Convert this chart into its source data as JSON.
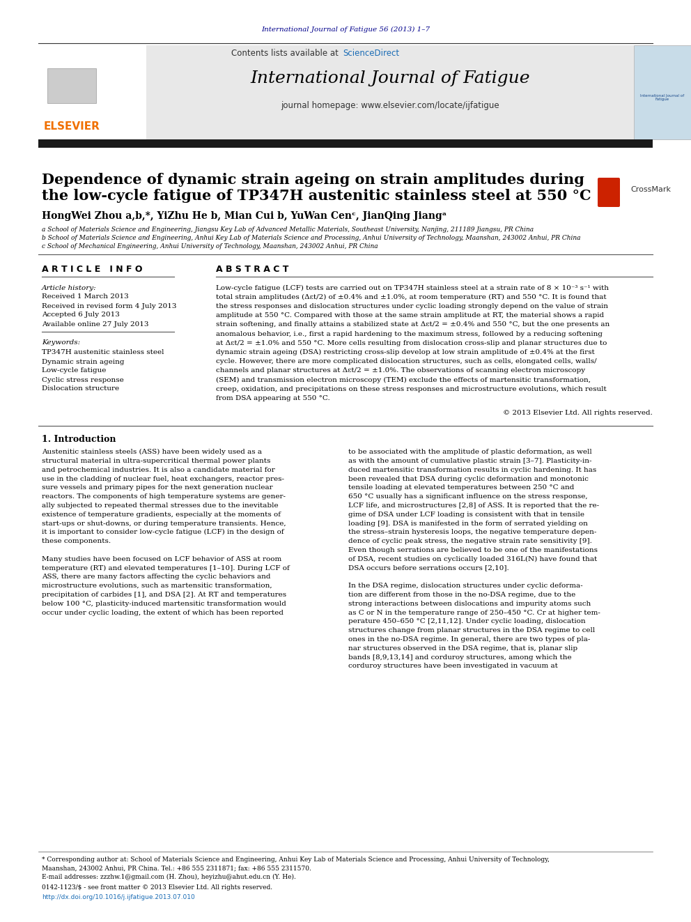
{
  "page_width": 9.92,
  "page_height": 13.23,
  "bg_color": "#ffffff",
  "top_citation": "International Journal of Fatigue 56 (2013) 1–7",
  "journal_name": "International Journal of Fatigue",
  "journal_homepage": "journal homepage: www.elsevier.com/locate/ijfatigue",
  "contents_available": "Contents lists available at ",
  "science_direct": "ScienceDirect",
  "article_title_line1": "Dependence of dynamic strain ageing on strain amplitudes during",
  "article_title_line2": "the low-cycle fatigue of TP347H austenitic stainless steel at 550 °C",
  "authors": "HongWei Zhou a,b,*, YiZhu He b, Mian Cui b, YuWan Cenᶜ, JianQing Jiangᵃ",
  "affil_a": "a School of Materials Science and Engineering, Jiangsu Key Lab of Advanced Metallic Materials, Southeast University, Nanjing, 211189 Jiangsu, PR China",
  "affil_b": "b School of Materials Science and Engineering, Anhui Key Lab of Materials Science and Processing, Anhui University of Technology, Maanshan, 243002 Anhui, PR China",
  "affil_c": "c School of Mechanical Engineering, Anhui University of Technology, Maanshan, 243002 Anhui, PR China",
  "article_info_title": "A R T I C L E   I N F O",
  "abstract_title": "A B S T R A C T",
  "article_history_label": "Article history:",
  "received": "Received 1 March 2013",
  "received_revised": "Received in revised form 4 July 2013",
  "accepted": "Accepted 6 July 2013",
  "available_online": "Available online 27 July 2013",
  "keywords_label": "Keywords:",
  "keyword1": "TP347H austenitic stainless steel",
  "keyword2": "Dynamic strain ageing",
  "keyword3": "Low-cycle fatigue",
  "keyword4": "Cyclic stress response",
  "keyword5": "Dislocation structure",
  "copyright_text": "© 2013 Elsevier Ltd. All rights reserved.",
  "section1_title": "1. Introduction",
  "footer_issn": "0142-1123/$ - see front matter © 2013 Elsevier Ltd. All rights reserved.",
  "footer_doi": "http://dx.doi.org/10.1016/j.ijfatigue.2013.07.010",
  "header_bg": "#e8e8e8",
  "elsevier_color": "#f07000",
  "citation_color": "#00008B",
  "sciencedirect_color": "#1a6cb5",
  "black_bar_color": "#1a1a1a"
}
